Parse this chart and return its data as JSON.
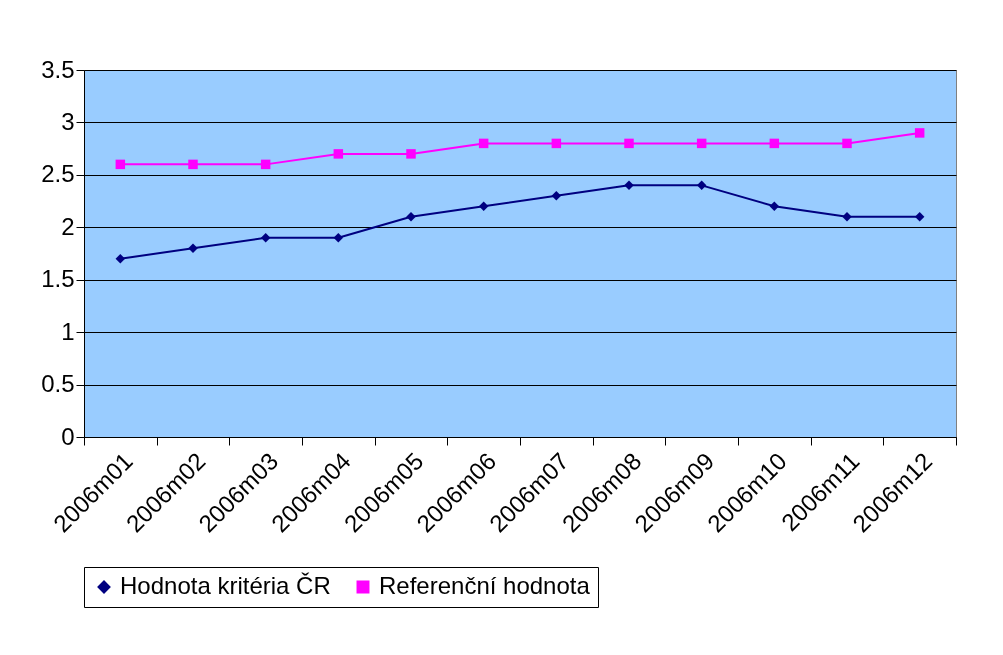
{
  "chart_data": {
    "type": "line",
    "categories": [
      "2006m01",
      "2006m02",
      "2006m03",
      "2006m04",
      "2006m05",
      "2006m06",
      "2006m07",
      "2006m08",
      "2006m09",
      "2006m10",
      "2006m11",
      "2006m12"
    ],
    "series": [
      {
        "name": "Hodnota kritéria ČR",
        "color": "#000080",
        "marker": "diamond",
        "values": [
          1.7,
          1.8,
          1.9,
          1.9,
          2.1,
          2.2,
          2.3,
          2.4,
          2.4,
          2.2,
          2.1,
          2.1
        ]
      },
      {
        "name": "Referenční hodnota",
        "color": "#ff00ff",
        "marker": "square",
        "values": [
          2.6,
          2.6,
          2.6,
          2.7,
          2.7,
          2.8,
          2.8,
          2.8,
          2.8,
          2.8,
          2.8,
          2.9
        ]
      }
    ],
    "ylim": [
      0,
      3.5
    ],
    "yticks": [
      0,
      0.5,
      1,
      1.5,
      2,
      2.5,
      3,
      3.5
    ],
    "grid": "y",
    "legend": "bottom",
    "line_style": "solid"
  }
}
